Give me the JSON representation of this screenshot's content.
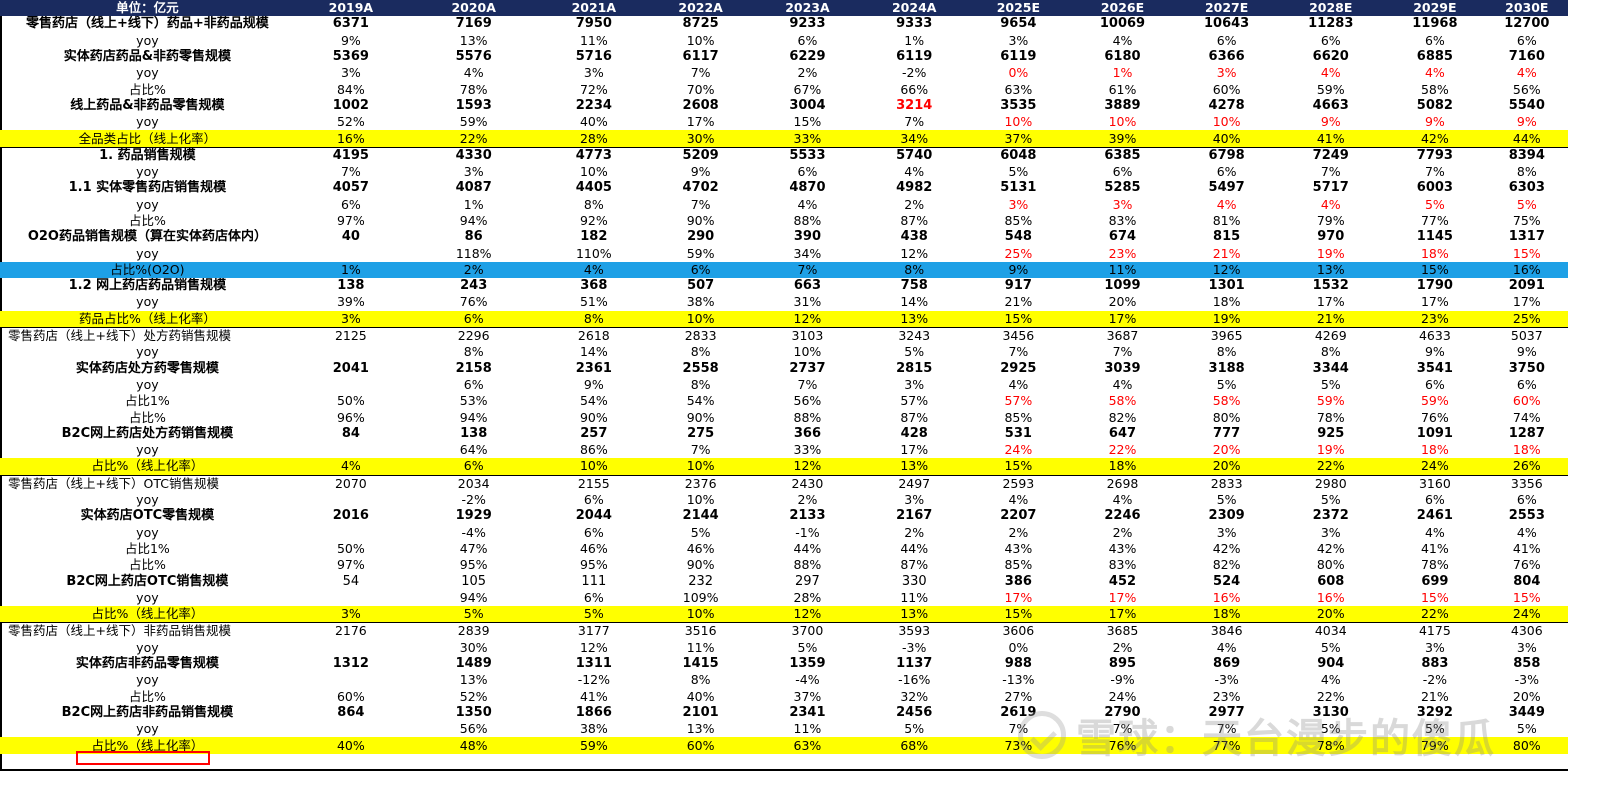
{
  "header": {
    "unit_label": "单位：亿元",
    "years": [
      "2019A",
      "2020A",
      "2021A",
      "2022A",
      "2023A",
      "2024A",
      "2025E",
      "2026E",
      "2027E",
      "2028E",
      "2029E",
      "2030E"
    ]
  },
  "rows": [
    {
      "label": "零售药店（线上+线下）药品+非药品规模",
      "style": "bold",
      "values": [
        "6371",
        "7169",
        "7950",
        "8725",
        "9233",
        "9333",
        "9654",
        "10069",
        "10643",
        "11283",
        "11968",
        "12700"
      ]
    },
    {
      "label": "yoy",
      "values": [
        "9%",
        "13%",
        "11%",
        "10%",
        "6%",
        "1%",
        "3%",
        "4%",
        "6%",
        "6%",
        "6%",
        "6%"
      ]
    },
    {
      "label": "实体药店药品&非药零售规模",
      "style": "bold",
      "values": [
        "5369",
        "5576",
        "5716",
        "6117",
        "6229",
        "6119",
        "6119",
        "6180",
        "6366",
        "6620",
        "6885",
        "7160"
      ]
    },
    {
      "label": "yoy",
      "values": [
        "3%",
        "4%",
        "3%",
        "7%",
        "2%",
        "-2%",
        "0%",
        "1%",
        "3%",
        "4%",
        "4%",
        "4%"
      ],
      "red_from": 6
    },
    {
      "label": "占比%",
      "values": [
        "84%",
        "78%",
        "72%",
        "70%",
        "67%",
        "66%",
        "63%",
        "61%",
        "60%",
        "59%",
        "58%",
        "56%"
      ]
    },
    {
      "label": "线上药品&非药品零售规模",
      "style": "bold",
      "values": [
        "1002",
        "1593",
        "2234",
        "2608",
        "3004",
        "3214",
        "3535",
        "3889",
        "4278",
        "4663",
        "5082",
        "5540"
      ],
      "red_cells": [
        5
      ]
    },
    {
      "label": "yoy",
      "values": [
        "52%",
        "59%",
        "40%",
        "17%",
        "15%",
        "7%",
        "10%",
        "10%",
        "10%",
        "9%",
        "9%",
        "9%"
      ],
      "red_from": 6
    },
    {
      "label": "全品类占比（线上化率）",
      "style": "yellow",
      "values": [
        "16%",
        "22%",
        "28%",
        "30%",
        "33%",
        "34%",
        "37%",
        "39%",
        "40%",
        "41%",
        "42%",
        "44%"
      ]
    },
    {
      "label": "1. 药品销售规模",
      "style": "bold",
      "sep": true,
      "values": [
        "4195",
        "4330",
        "4773",
        "5209",
        "5533",
        "5740",
        "6048",
        "6385",
        "6798",
        "7249",
        "7793",
        "8394"
      ]
    },
    {
      "label": "yoy",
      "values": [
        "7%",
        "3%",
        "10%",
        "9%",
        "6%",
        "4%",
        "5%",
        "6%",
        "6%",
        "7%",
        "7%",
        "8%"
      ]
    },
    {
      "label": "1.1 实体零售药店销售规模",
      "style": "bold",
      "values": [
        "4057",
        "4087",
        "4405",
        "4702",
        "4870",
        "4982",
        "5131",
        "5285",
        "5497",
        "5717",
        "6003",
        "6303"
      ]
    },
    {
      "label": "yoy",
      "values": [
        "6%",
        "1%",
        "8%",
        "7%",
        "4%",
        "2%",
        "3%",
        "3%",
        "4%",
        "4%",
        "5%",
        "5%"
      ],
      "red_from": 6
    },
    {
      "label": "占比%",
      "values": [
        "97%",
        "94%",
        "92%",
        "90%",
        "88%",
        "87%",
        "85%",
        "83%",
        "81%",
        "79%",
        "77%",
        "75%"
      ]
    },
    {
      "label": "O2O药品销售规模（算在实体药店体内）",
      "style": "bold",
      "values": [
        "40",
        "86",
        "182",
        "290",
        "390",
        "438",
        "548",
        "674",
        "815",
        "970",
        "1145",
        "1317"
      ]
    },
    {
      "label": "yoy",
      "values": [
        "",
        "118%",
        "110%",
        "59%",
        "34%",
        "12%",
        "25%",
        "23%",
        "21%",
        "19%",
        "18%",
        "15%"
      ],
      "red_from": 6
    },
    {
      "label": "占比%(O2O)",
      "style": "blue",
      "values": [
        "1%",
        "2%",
        "4%",
        "6%",
        "7%",
        "8%",
        "9%",
        "11%",
        "12%",
        "13%",
        "15%",
        "16%"
      ]
    },
    {
      "label": "1.2 网上药店药品销售规模",
      "style": "bold",
      "values": [
        "138",
        "243",
        "368",
        "507",
        "663",
        "758",
        "917",
        "1099",
        "1301",
        "1532",
        "1790",
        "2091"
      ]
    },
    {
      "label": "yoy",
      "values": [
        "39%",
        "76%",
        "51%",
        "38%",
        "31%",
        "14%",
        "21%",
        "20%",
        "18%",
        "17%",
        "17%",
        "17%"
      ]
    },
    {
      "label": "药品占比%（线上化率）",
      "style": "yellow",
      "values": [
        "3%",
        "6%",
        "8%",
        "10%",
        "12%",
        "13%",
        "15%",
        "17%",
        "19%",
        "21%",
        "23%",
        "25%"
      ]
    },
    {
      "label": "零售药店（线上+线下）处方药销售规模",
      "sep": true,
      "values": [
        "2125",
        "2296",
        "2618",
        "2833",
        "3103",
        "3243",
        "3456",
        "3687",
        "3965",
        "4269",
        "4633",
        "5037"
      ]
    },
    {
      "label": "yoy",
      "values": [
        "",
        "8%",
        "14%",
        "8%",
        "10%",
        "5%",
        "7%",
        "7%",
        "8%",
        "8%",
        "9%",
        "9%"
      ]
    },
    {
      "label": "实体药店处方药零售规模",
      "style": "bold",
      "values": [
        "2041",
        "2158",
        "2361",
        "2558",
        "2737",
        "2815",
        "2925",
        "3039",
        "3188",
        "3344",
        "3541",
        "3750"
      ]
    },
    {
      "label": "yoy",
      "values": [
        "",
        "6%",
        "9%",
        "8%",
        "7%",
        "3%",
        "4%",
        "4%",
        "5%",
        "5%",
        "6%",
        "6%"
      ]
    },
    {
      "label": "占比1%",
      "values": [
        "50%",
        "53%",
        "54%",
        "54%",
        "56%",
        "57%",
        "57%",
        "58%",
        "58%",
        "59%",
        "59%",
        "60%"
      ],
      "red_from": 6
    },
    {
      "label": "占比%",
      "values": [
        "96%",
        "94%",
        "90%",
        "90%",
        "88%",
        "87%",
        "85%",
        "82%",
        "80%",
        "78%",
        "76%",
        "74%"
      ]
    },
    {
      "label": "B2C网上药店处方药销售规模",
      "style": "bold",
      "values": [
        "84",
        "138",
        "257",
        "275",
        "366",
        "428",
        "531",
        "647",
        "777",
        "925",
        "1091",
        "1287"
      ]
    },
    {
      "label": "yoy",
      "values": [
        "",
        "64%",
        "86%",
        "7%",
        "33%",
        "17%",
        "24%",
        "22%",
        "20%",
        "19%",
        "18%",
        "18%"
      ],
      "red_from": 6
    },
    {
      "label": "占比%（线上化率）",
      "style": "yellow",
      "values": [
        "4%",
        "6%",
        "10%",
        "10%",
        "12%",
        "13%",
        "15%",
        "18%",
        "20%",
        "22%",
        "24%",
        "26%"
      ]
    },
    {
      "label": "零售药店（线上+线下）OTC销售规模",
      "sep": true,
      "values": [
        "2070",
        "2034",
        "2155",
        "2376",
        "2430",
        "2497",
        "2593",
        "2698",
        "2833",
        "2980",
        "3160",
        "3356"
      ]
    },
    {
      "label": "yoy",
      "values": [
        "",
        "-2%",
        "6%",
        "10%",
        "2%",
        "3%",
        "4%",
        "4%",
        "5%",
        "5%",
        "6%",
        "6%"
      ]
    },
    {
      "label": "实体药店OTC零售规模",
      "style": "bold",
      "values": [
        "2016",
        "1929",
        "2044",
        "2144",
        "2133",
        "2167",
        "2207",
        "2246",
        "2309",
        "2372",
        "2461",
        "2553"
      ]
    },
    {
      "label": "yoy",
      "values": [
        "",
        "-4%",
        "6%",
        "5%",
        "-1%",
        "2%",
        "2%",
        "2%",
        "3%",
        "3%",
        "4%",
        "4%"
      ]
    },
    {
      "label": "占比1%",
      "values": [
        "50%",
        "47%",
        "46%",
        "46%",
        "44%",
        "44%",
        "43%",
        "43%",
        "42%",
        "42%",
        "41%",
        "41%"
      ]
    },
    {
      "label": "占比%",
      "values": [
        "97%",
        "95%",
        "95%",
        "90%",
        "88%",
        "87%",
        "85%",
        "83%",
        "82%",
        "80%",
        "78%",
        "76%"
      ]
    },
    {
      "label": "B2C网上药店OTC销售规模",
      "style": "bold",
      "values": [
        "54",
        "105",
        "111",
        "232",
        "297",
        "330",
        "386",
        "452",
        "524",
        "608",
        "699",
        "804"
      ],
      "bold_from": 6
    },
    {
      "label": "yoy",
      "values": [
        "",
        "94%",
        "6%",
        "109%",
        "28%",
        "11%",
        "17%",
        "17%",
        "16%",
        "16%",
        "15%",
        "15%"
      ],
      "red_from": 6
    },
    {
      "label": "占比%（线上化率）",
      "style": "yellow",
      "values": [
        "3%",
        "5%",
        "5%",
        "10%",
        "12%",
        "13%",
        "15%",
        "17%",
        "18%",
        "20%",
        "22%",
        "24%"
      ]
    },
    {
      "label": "零售药店（线上+线下）非药品销售规模",
      "sep": true,
      "values": [
        "2176",
        "2839",
        "3177",
        "3516",
        "3700",
        "3593",
        "3606",
        "3685",
        "3846",
        "4034",
        "4175",
        "4306"
      ]
    },
    {
      "label": "yoy",
      "values": [
        "",
        "30%",
        "12%",
        "11%",
        "5%",
        "-3%",
        "0%",
        "2%",
        "4%",
        "5%",
        "3%",
        "3%"
      ]
    },
    {
      "label": "实体药店非药品零售规模",
      "style": "bold",
      "values": [
        "1312",
        "1489",
        "1311",
        "1415",
        "1359",
        "1137",
        "988",
        "895",
        "869",
        "904",
        "883",
        "858"
      ]
    },
    {
      "label": "yoy",
      "values": [
        "",
        "13%",
        "-12%",
        "8%",
        "-4%",
        "-16%",
        "-13%",
        "-9%",
        "-3%",
        "4%",
        "-2%",
        "-3%"
      ]
    },
    {
      "label": "占比%",
      "values": [
        "60%",
        "52%",
        "41%",
        "40%",
        "37%",
        "32%",
        "27%",
        "24%",
        "23%",
        "22%",
        "21%",
        "20%"
      ]
    },
    {
      "label": "B2C网上药店非药品销售规模",
      "style": "bold",
      "values": [
        "864",
        "1350",
        "1866",
        "2101",
        "2341",
        "2456",
        "2619",
        "2790",
        "2977",
        "3130",
        "3292",
        "3449"
      ]
    },
    {
      "label": "yoy",
      "values": [
        "",
        "56%",
        "38%",
        "13%",
        "11%",
        "5%",
        "7%",
        "7%",
        "7%",
        "5%",
        "5%",
        "5%"
      ]
    },
    {
      "label": "占比%（线上化率）",
      "style": "yellow",
      "values": [
        "40%",
        "48%",
        "59%",
        "60%",
        "63%",
        "68%",
        "73%",
        "76%",
        "77%",
        "78%",
        "79%",
        "80%"
      ]
    }
  ],
  "watermark": {
    "text": "雪球：天台漫步的傻瓜"
  }
}
